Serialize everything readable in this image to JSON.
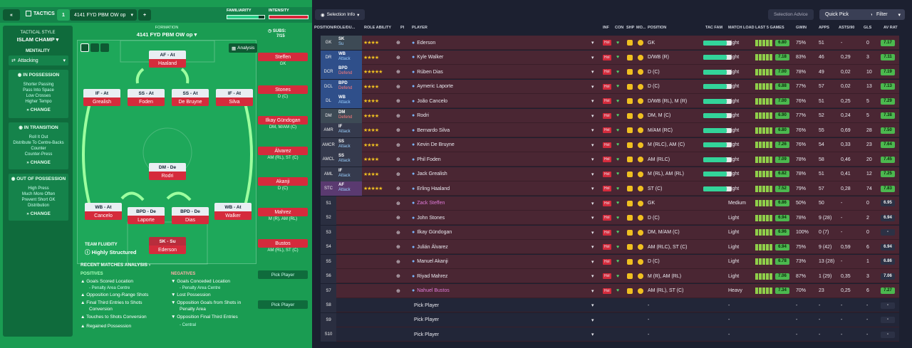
{
  "topbar": {
    "back": "«",
    "tactics_label": "TACTICS",
    "slot": "1",
    "formation_name": "4141 FYD PBM OW op",
    "add": "+",
    "familiarity": "FAMILIARITY",
    "intensity": "INTENSITY"
  },
  "side": {
    "style_label": "TACTICAL STYLE",
    "style": "ISLAM CHAMP",
    "mentality_label": "MENTALITY",
    "mentality": "Attacking",
    "in_possession": {
      "title": "IN POSSESSION",
      "items": [
        "Shorter Passing",
        "Pass Into Space",
        "Low Crosses",
        "Higher Tempo"
      ],
      "change": "CHANGE"
    },
    "in_transition": {
      "title": "IN TRANSITION",
      "items": [
        "Roll It Out",
        "Distribute To Centre-Backs",
        "Counter",
        "Counter-Press"
      ],
      "change": "CHANGE"
    },
    "out_possession": {
      "title": "OUT OF POSSESSION",
      "items": [
        "High Press",
        "Much More Often",
        "Prevent Short GK",
        "Distribution"
      ],
      "change": "CHANGE"
    }
  },
  "formation": {
    "label": "FORMATION",
    "name": "4141 FYD PBM OW op",
    "analysis": "Analysis",
    "subs_label": "SUBS:",
    "subs": "7/15",
    "fluidity_label": "TEAM FLUIDITY",
    "fluidity": "Highly Structured"
  },
  "pitch": [
    {
      "role": "AF - At",
      "name": "Haaland"
    },
    {
      "role": "IF - At",
      "name": "Grealish"
    },
    {
      "role": "SS - At",
      "name": "Foden"
    },
    {
      "role": "SS - At",
      "name": "De Bruyne"
    },
    {
      "role": "IF - At",
      "name": "Silva"
    },
    {
      "role": "DM - De",
      "name": "Rodri"
    },
    {
      "role": "WB - At",
      "name": "Cancelo"
    },
    {
      "role": "BPD - De",
      "name": "Laporte"
    },
    {
      "role": "BPD - De",
      "name": "Dias"
    },
    {
      "role": "WB - At",
      "name": "Walker"
    },
    {
      "role": "SK - Su",
      "name": "Ederson"
    }
  ],
  "subs": [
    {
      "name": "Steffen",
      "pos": "GK"
    },
    {
      "name": "Stones",
      "pos": "D (C)"
    },
    {
      "name": "Ilkay Gündogan",
      "pos": "DM, M/AM (C)"
    },
    {
      "name": "Álvarez",
      "pos": "AM (RL), ST (C)"
    },
    {
      "name": "Akanji",
      "pos": "D (C)"
    },
    {
      "name": "Mahrez",
      "pos": "M (R), AM (RL)"
    },
    {
      "name": "Bustos",
      "pos": "AM (RL), ST (C)"
    },
    {
      "name": "Pick Player",
      "pos": ""
    },
    {
      "name": "Pick Player",
      "pos": ""
    }
  ],
  "analysis": {
    "title": "RECENT MATCHES ANALYSIS ›",
    "pos_label": "POSITIVES",
    "neg_label": "NEGATIVES",
    "positives": [
      "Goals Scored Location",
      "- Penalty Area Centre",
      "Opposition Long-Range Shots",
      "Final Third Entries to Shots",
      "Conversion",
      "Touches to Shots Conversion",
      "Regained Possession"
    ],
    "negatives": [
      "Goals Conceded Location",
      "- Penalty Area Centre",
      "Lost Possession",
      "Opposition Goals from Shots in",
      "Penalty Area",
      "Opposition Final Third Entries",
      "- Central"
    ]
  },
  "right": {
    "selection_info": "Selection Info",
    "selection_advice": "Selection Advice",
    "quick_pick": "Quick Pick",
    "filter": "Filter"
  },
  "headers": [
    "POSITION/ROLE/DU...",
    "ROLE ABILITY",
    "PI",
    "PLAYER",
    "INF",
    "CON",
    "SHP",
    "MO...",
    "POSITION",
    "TAC FAM",
    "MATCH LOAD",
    "LAST 5 GAMES",
    "GWIN",
    "APPS",
    "ASTS/90",
    "GLS",
    "AV RAT"
  ],
  "rows": [
    {
      "pos": "GK",
      "role": "SK",
      "duty": "Su",
      "stars": "★★★★",
      "player": "Ederson",
      "position": "GK",
      "load": "Light",
      "rating": "6.80",
      "gwin": "75%",
      "apps": "51",
      "asts": "-",
      "gls": "0",
      "av": "7.17"
    },
    {
      "pos": "DR",
      "role": "WB",
      "duty": "Attack",
      "stars": "★★★★",
      "player": "Kyle Walker",
      "position": "D/WB (R)",
      "load": "Light",
      "rating": "7.18",
      "gwin": "83%",
      "apps": "46",
      "asts": "0,29",
      "gls": "3",
      "av": "7.11"
    },
    {
      "pos": "DCR",
      "role": "BPD",
      "duty": "Defend",
      "stars": "★★★★★",
      "player": "Rúben Dias",
      "position": "D (C)",
      "load": "Light",
      "rating": "7.00",
      "gwin": "78%",
      "apps": "49",
      "asts": "0,02",
      "gls": "10",
      "av": "7.19"
    },
    {
      "pos": "DCL",
      "role": "BPD",
      "duty": "Defend",
      "stars": "★★★★",
      "player": "Aymeric Laporte",
      "position": "D (C)",
      "load": "Light",
      "rating": "6.88",
      "gwin": "77%",
      "apps": "57",
      "asts": "0,02",
      "gls": "13",
      "av": "7.13"
    },
    {
      "pos": "DL",
      "role": "WB",
      "duty": "Attack",
      "stars": "★★★★",
      "player": "João Cancelo",
      "position": "D/WB (RL), M (R)",
      "load": "Light",
      "rating": "7.00",
      "gwin": "76%",
      "apps": "51",
      "asts": "0,25",
      "gls": "5",
      "av": "7.29"
    },
    {
      "pos": "DM",
      "role": "DM",
      "duty": "Defend",
      "stars": "★★★★",
      "player": "Rodri",
      "position": "DM, M (C)",
      "load": "Light",
      "rating": "6.90",
      "gwin": "77%",
      "apps": "52",
      "asts": "0,24",
      "gls": "5",
      "av": "7.38"
    },
    {
      "pos": "AMR",
      "role": "IF",
      "duty": "Attack",
      "stars": "★★★★",
      "player": "Bernardo Silva",
      "position": "M/AM (RC)",
      "load": "Light",
      "rating": "6.80",
      "gwin": "76%",
      "apps": "55",
      "asts": "0,69",
      "gls": "28",
      "av": "7.50"
    },
    {
      "pos": "AMCR",
      "role": "SS",
      "duty": "Attack",
      "stars": "★★★★",
      "player": "Kevin De Bruyne",
      "position": "M (RLC), AM (C)",
      "load": "Light",
      "rating": "7.26",
      "gwin": "76%",
      "apps": "54",
      "asts": "0,33",
      "gls": "23",
      "av": "7.64"
    },
    {
      "pos": "AMCL",
      "role": "SS",
      "duty": "Attack",
      "stars": "★★★★",
      "player": "Phil Foden",
      "position": "AM (RLC)",
      "load": "Light",
      "rating": "7.09",
      "gwin": "78%",
      "apps": "58",
      "asts": "0,46",
      "gls": "20",
      "av": "7.45"
    },
    {
      "pos": "AML",
      "role": "IF",
      "duty": "Attack",
      "stars": "★★★★",
      "player": "Jack Grealish",
      "position": "M (RL), AM (RL)",
      "load": "Light",
      "rating": "6.82",
      "gwin": "78%",
      "apps": "51",
      "asts": "0,41",
      "gls": "12",
      "av": "7.25"
    },
    {
      "pos": "STC",
      "role": "AF",
      "duty": "Attack",
      "stars": "★★★★★",
      "player": "Erling Haaland",
      "position": "ST (C)",
      "load": "Light",
      "rating": "7.52",
      "gwin": "79%",
      "apps": "57",
      "asts": "0,28",
      "gls": "74",
      "av": "7.83"
    },
    {
      "pos": "S1",
      "role": "",
      "duty": "",
      "stars": "",
      "player": "Zack Steffen",
      "position": "GK",
      "load": "Medium",
      "rating": "6.86",
      "gwin": "50%",
      "apps": "50",
      "asts": "-",
      "gls": "0",
      "av": "6.95"
    },
    {
      "pos": "S2",
      "role": "",
      "duty": "",
      "stars": "",
      "player": "John Stones",
      "position": "D (C)",
      "load": "Light",
      "rating": "6.94",
      "gwin": "78%",
      "apps": "9 (28)",
      "asts": "-",
      "gls": "2",
      "av": "6.94"
    },
    {
      "pos": "S3",
      "role": "",
      "duty": "",
      "stars": "",
      "player": "Ilkay Gündogan",
      "position": "DM, M/AM (C)",
      "load": "Light",
      "rating": "6.96",
      "gwin": "100%",
      "apps": "0 (7)",
      "asts": "-",
      "gls": "0",
      "av": "-"
    },
    {
      "pos": "S4",
      "role": "",
      "duty": "",
      "stars": "",
      "player": "Julián Álvarez",
      "position": "AM (RLC), ST (C)",
      "load": "Light",
      "rating": "6.94",
      "gwin": "75%",
      "apps": "9 (42)",
      "asts": "0,59",
      "gls": "6",
      "av": "6.94"
    },
    {
      "pos": "S5",
      "role": "",
      "duty": "",
      "stars": "",
      "player": "Manuel Akanji",
      "position": "D (C)",
      "load": "Light",
      "rating": "6.78",
      "gwin": "73%",
      "apps": "13 (28)",
      "asts": "-",
      "gls": "1",
      "av": "6.86"
    },
    {
      "pos": "S6",
      "role": "",
      "duty": "",
      "stars": "",
      "player": "Riyad Mahrez",
      "position": "M (R), AM (RL)",
      "load": "Light",
      "rating": "7.06",
      "gwin": "87%",
      "apps": "1 (29)",
      "asts": "0,35",
      "gls": "3",
      "av": "7.06"
    },
    {
      "pos": "S7",
      "role": "",
      "duty": "",
      "stars": "",
      "player": "Nahuel Bustos",
      "position": "AM (RL), ST (C)",
      "load": "Heavy",
      "rating": "7.34",
      "gwin": "70%",
      "apps": "23",
      "asts": "0,25",
      "gls": "6",
      "av": "7.27"
    },
    {
      "pos": "S8",
      "role": "",
      "duty": "",
      "stars": "",
      "player": "Pick Player",
      "position": "-",
      "load": "-",
      "rating": "",
      "gwin": "-",
      "apps": "-",
      "asts": "-",
      "gls": "-",
      "av": "-"
    },
    {
      "pos": "S9",
      "role": "",
      "duty": "",
      "stars": "",
      "player": "Pick Player",
      "position": "-",
      "load": "-",
      "rating": "",
      "gwin": "-",
      "apps": "-",
      "asts": "-",
      "gls": "-",
      "av": "-"
    },
    {
      "pos": "S10",
      "role": "",
      "duty": "",
      "stars": "",
      "player": "Pick Player",
      "position": "-",
      "load": "-",
      "rating": "",
      "gwin": "-",
      "apps": "-",
      "asts": "-",
      "gls": "-",
      "av": "-"
    }
  ]
}
